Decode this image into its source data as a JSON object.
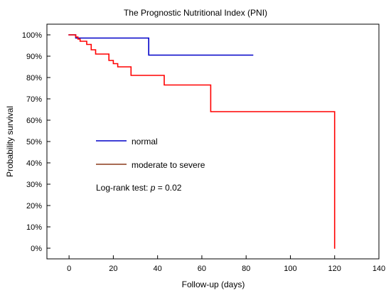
{
  "chart_data": {
    "type": "line",
    "subtype": "kaplan-meier-step",
    "title": "The Prognostic Nutritional Index (PNI)",
    "xlabel": "Follow-up (days)",
    "ylabel": "Probability survival",
    "xlim": [
      -10,
      140
    ],
    "ylim": [
      -5,
      105
    ],
    "x_ticks": [
      0,
      20,
      40,
      60,
      80,
      100,
      120,
      140
    ],
    "y_ticks": [
      0,
      10,
      20,
      30,
      40,
      50,
      60,
      70,
      80,
      90,
      100
    ],
    "y_tick_labels": [
      "0%",
      "10%",
      "20%",
      "30%",
      "40%",
      "50%",
      "60%",
      "70%",
      "80%",
      "90%",
      "100%"
    ],
    "grid": false,
    "legend_position": "center-left",
    "annotation": {
      "prefix": "Log-rank test: ",
      "stat": "p",
      "suffix": " = 0.02"
    },
    "series": [
      {
        "name": "normal",
        "color": "#0000c8",
        "points": [
          [
            0,
            100
          ],
          [
            3,
            100
          ],
          [
            3,
            98.5
          ],
          [
            36,
            98.5
          ],
          [
            36,
            90.5
          ],
          [
            83,
            90.5
          ]
        ]
      },
      {
        "name": "moderate to severe",
        "color": "#ff0000",
        "legend_color": "#8b3a1a",
        "points": [
          [
            0,
            100
          ],
          [
            3,
            100
          ],
          [
            3,
            99
          ],
          [
            4,
            99
          ],
          [
            4,
            98
          ],
          [
            5,
            98
          ],
          [
            5,
            97
          ],
          [
            8,
            97
          ],
          [
            8,
            95.5
          ],
          [
            10,
            95.5
          ],
          [
            10,
            93
          ],
          [
            12,
            93
          ],
          [
            12,
            91
          ],
          [
            18,
            91
          ],
          [
            18,
            88
          ],
          [
            20,
            88
          ],
          [
            20,
            86.5
          ],
          [
            22,
            86.5
          ],
          [
            22,
            85
          ],
          [
            28,
            85
          ],
          [
            28,
            81
          ],
          [
            43,
            81
          ],
          [
            43,
            76.5
          ],
          [
            64,
            76.5
          ],
          [
            64,
            64
          ],
          [
            120,
            64
          ],
          [
            120,
            0
          ]
        ]
      }
    ]
  }
}
